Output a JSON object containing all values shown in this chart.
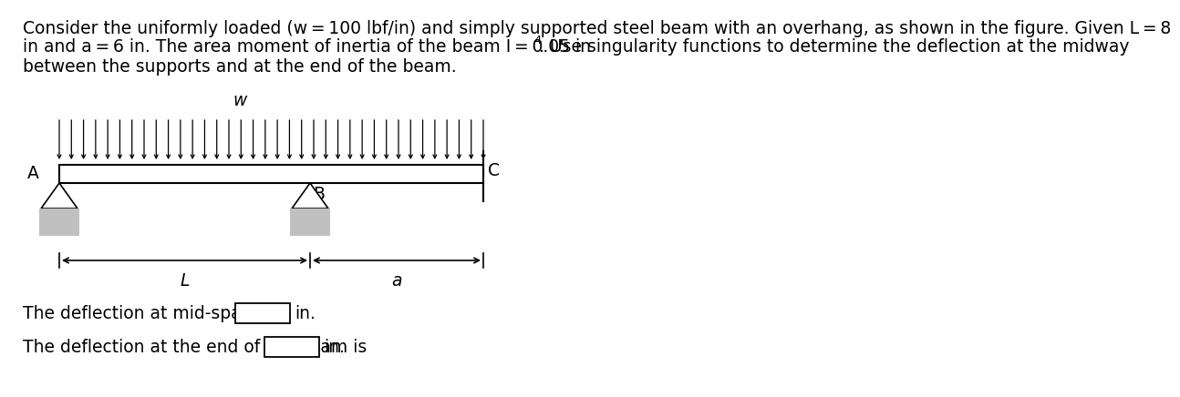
{
  "title_line1": "Consider the uniformly loaded (w = 100 lbf/in) and simply supported steel beam with an overhang, as shown in the figure. Given L = 8",
  "title_line2a": "in and a = 6 in. The area moment of inertia of the beam I = 0.05 in",
  "title_line2b": ". Use singularity functions to determine the deflection at the midway",
  "title_line3": "between the supports and at the end of the beam.",
  "label_A": "A",
  "label_B": "B",
  "label_C": "C",
  "label_w": "w",
  "label_L": "L",
  "label_a": "a",
  "text_midspan": "The deflection at mid-span is",
  "text_end": "The deflection at the end of the beam is",
  "text_in": "in.",
  "bg_color": "#ffffff",
  "support_fill": "#c0c0c0",
  "font_size_body": 13.5,
  "font_size_small": 9.5
}
